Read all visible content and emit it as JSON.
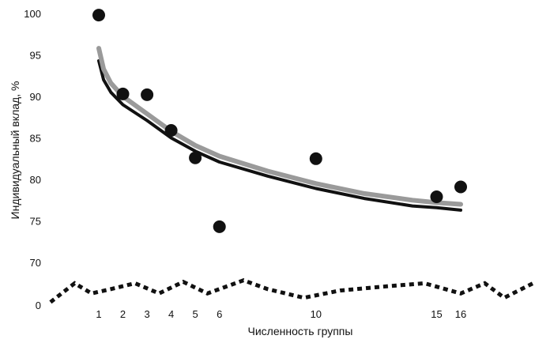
{
  "chart_data": {
    "type": "scatter",
    "xlabel": "Численность группы",
    "ylabel": "Индивидуальный вклад, %",
    "x_ticks": [
      "1",
      "2",
      "3",
      "4",
      "5",
      "6",
      "10",
      "15",
      "16"
    ],
    "y_ticks": [
      "0",
      "70",
      "75",
      "80",
      "85",
      "90",
      "95",
      "100"
    ],
    "y_axis_break": "between 0 and 70",
    "grid": false,
    "legend": "none",
    "series": [
      {
        "kind": "points",
        "color": "#111111",
        "points": [
          {
            "x": 1,
            "y": 99.8
          },
          {
            "x": 2,
            "y": 90.3
          },
          {
            "x": 3,
            "y": 90.2
          },
          {
            "x": 4,
            "y": 85.9
          },
          {
            "x": 5,
            "y": 82.6
          },
          {
            "x": 6,
            "y": 74.3
          },
          {
            "x": 10,
            "y": 82.5
          },
          {
            "x": 15,
            "y": 77.9
          },
          {
            "x": 16,
            "y": 79.1
          }
        ]
      },
      {
        "kind": "curve",
        "color": "#111111",
        "points": [
          {
            "x": 1,
            "y": 94.3
          },
          {
            "x": 1.2,
            "y": 92.0
          },
          {
            "x": 1.5,
            "y": 90.5
          },
          {
            "x": 2,
            "y": 89.0
          },
          {
            "x": 3,
            "y": 87.1
          },
          {
            "x": 4,
            "y": 85.0
          },
          {
            "x": 5,
            "y": 83.4
          },
          {
            "x": 6,
            "y": 82.1
          },
          {
            "x": 8,
            "y": 80.4
          },
          {
            "x": 10,
            "y": 78.9
          },
          {
            "x": 12,
            "y": 77.7
          },
          {
            "x": 14,
            "y": 76.8
          },
          {
            "x": 15,
            "y": 76.6
          },
          {
            "x": 16,
            "y": 76.3
          }
        ]
      },
      {
        "kind": "curve",
        "color": "#9a9a9a",
        "points": [
          {
            "x": 1,
            "y": 95.8
          },
          {
            "x": 1.2,
            "y": 93.3
          },
          {
            "x": 1.5,
            "y": 91.6
          },
          {
            "x": 2,
            "y": 90.0
          },
          {
            "x": 3,
            "y": 87.9
          },
          {
            "x": 4,
            "y": 85.8
          },
          {
            "x": 5,
            "y": 84.1
          },
          {
            "x": 6,
            "y": 82.8
          },
          {
            "x": 8,
            "y": 81.0
          },
          {
            "x": 10,
            "y": 79.5
          },
          {
            "x": 12,
            "y": 78.3
          },
          {
            "x": 14,
            "y": 77.5
          },
          {
            "x": 15,
            "y": 77.2
          },
          {
            "x": 16,
            "y": 77.0
          }
        ]
      },
      {
        "kind": "dotted",
        "color": "#111111",
        "points": [
          {
            "x": -1.0,
            "y": 0.4
          },
          {
            "x": 0.0,
            "y": 3.0
          },
          {
            "x": 0.7,
            "y": 1.6
          },
          {
            "x": 1.5,
            "y": 2.2
          },
          {
            "x": 2.5,
            "y": 3.0
          },
          {
            "x": 3.5,
            "y": 1.6
          },
          {
            "x": 4.5,
            "y": 3.2
          },
          {
            "x": 5.5,
            "y": 1.6
          },
          {
            "x": 7.0,
            "y": 3.4
          },
          {
            "x": 8.0,
            "y": 2.2
          },
          {
            "x": 9.5,
            "y": 1.0
          },
          {
            "x": 11.0,
            "y": 2.0
          },
          {
            "x": 13.0,
            "y": 2.6
          },
          {
            "x": 14.5,
            "y": 3.0
          },
          {
            "x": 16.0,
            "y": 1.6
          },
          {
            "x": 17.0,
            "y": 3.0
          },
          {
            "x": 17.8,
            "y": 1.0
          },
          {
            "x": 19.0,
            "y": 3.0
          }
        ]
      }
    ]
  }
}
